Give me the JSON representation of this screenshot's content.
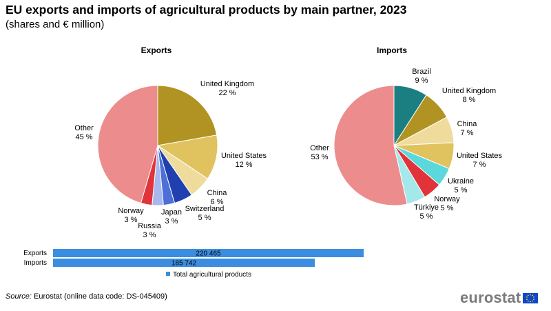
{
  "header": {
    "title": "EU exports and imports of agricultural products by main partner, 2023",
    "subtitle": "(shares and € million)"
  },
  "colors": {
    "United Kingdom": "#b09322",
    "United States": "#e0c35e",
    "China": "#efdc9c",
    "Switzerland": "#2140b0",
    "Japan": "#4d6fd8",
    "Russia": "#a7b8ee",
    "Norway": "#e0333a",
    "Other": "#ec8c8c",
    "Brazil": "#1b7f82",
    "Ukraine": "#5ad8dc",
    "Türkiye": "#a5e8ea",
    "bar": "#3b8de0"
  },
  "chart_data": [
    {
      "type": "pie",
      "title": "Exports",
      "slices": [
        {
          "label": "United Kingdom",
          "value": 22,
          "text": "22 %"
        },
        {
          "label": "United States",
          "value": 12,
          "text": "12 %"
        },
        {
          "label": "China",
          "value": 6,
          "text": "6 %"
        },
        {
          "label": "Switzerland",
          "value": 5,
          "text": "5 %"
        },
        {
          "label": "Japan",
          "value": 3,
          "text": "3 %"
        },
        {
          "label": "Russia",
          "value": 3,
          "text": "3 %"
        },
        {
          "label": "Norway",
          "value": 3,
          "text": "3 %"
        },
        {
          "label": "Other",
          "value": 45,
          "text": "45 %"
        }
      ]
    },
    {
      "type": "pie",
      "title": "Imports",
      "slices": [
        {
          "label": "Brazil",
          "value": 9,
          "text": "9 %"
        },
        {
          "label": "United Kingdom",
          "value": 8,
          "text": "8 %"
        },
        {
          "label": "China",
          "value": 7,
          "text": "7 %"
        },
        {
          "label": "United States",
          "value": 7,
          "text": "7 %"
        },
        {
          "label": "Ukraine",
          "value": 5,
          "text": "5 %"
        },
        {
          "label": "Norway",
          "value": 5,
          "text": "5 %"
        },
        {
          "label": "Türkiye",
          "value": 5,
          "text": "5 %"
        },
        {
          "label": "Other",
          "value": 53,
          "text": "53 %"
        }
      ]
    },
    {
      "type": "bar",
      "orientation": "horizontal",
      "categories": [
        "Exports",
        "Imports"
      ],
      "values": [
        220465,
        185742
      ],
      "value_labels": [
        "220 465",
        "185 742"
      ],
      "series": [
        {
          "name": "Total agricultural products",
          "values": [
            220465,
            185742
          ]
        }
      ],
      "legend": "bottom"
    }
  ],
  "footer": {
    "source_label": "Source:",
    "source_text": "Eurostat (online data code: DS-045409)",
    "logo_text": "eurostat"
  }
}
